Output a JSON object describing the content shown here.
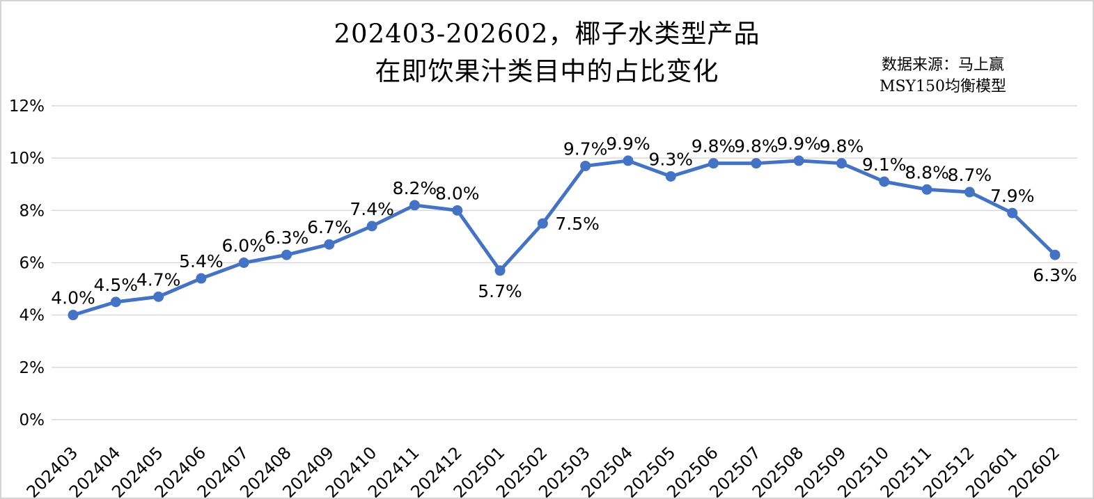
{
  "title": {
    "line1": "202403-202602，椰子水类型产品",
    "line2": "在即饮果汁类目中的占比变化"
  },
  "source": {
    "line1": "数据来源：马上赢",
    "line2": "MSY150均衡模型"
  },
  "chart_data": {
    "type": "line",
    "title": "202403-202602，椰子水类型产品在即饮果汁类目中的占比变化",
    "xlabel": "",
    "ylabel": "",
    "categories": [
      "202403",
      "202404",
      "202405",
      "202406",
      "202407",
      "202408",
      "202409",
      "202410",
      "202411",
      "202412",
      "202501",
      "202502",
      "202503",
      "202504",
      "202505",
      "202506",
      "202507",
      "202508",
      "202509",
      "202510",
      "202511",
      "202512",
      "202601",
      "202602"
    ],
    "values": [
      4.0,
      4.5,
      4.7,
      5.4,
      6.0,
      6.3,
      6.7,
      7.4,
      8.2,
      8.0,
      5.7,
      7.5,
      9.7,
      9.9,
      9.3,
      9.8,
      9.8,
      9.9,
      9.8,
      9.1,
      8.8,
      8.7,
      7.9,
      6.3
    ],
    "labels": [
      "4.0%",
      "4.5%",
      "4.7%",
      "5.4%",
      "6.0%",
      "6.3%",
      "6.7%",
      "7.4%",
      "8.2%",
      "8.0%",
      "5.7%",
      "7.5%",
      "9.7%",
      "9.9%",
      "9.3%",
      "9.8%",
      "9.8%",
      "9.9%",
      "9.8%",
      "9.1%",
      "8.8%",
      "8.7%",
      "7.9%",
      "6.3%"
    ],
    "label_placement": {
      "10": "below",
      "11": "right",
      "23": "below"
    },
    "ylim": [
      0,
      12
    ],
    "ytick_step": 2,
    "ytick_labels": [
      "0%",
      "2%",
      "4%",
      "6%",
      "8%",
      "10%",
      "12%"
    ],
    "grid": true,
    "legend_position": "none",
    "series_color": "#4472C4",
    "grid_color": "#d9d9d9",
    "label_color": "#000000"
  }
}
